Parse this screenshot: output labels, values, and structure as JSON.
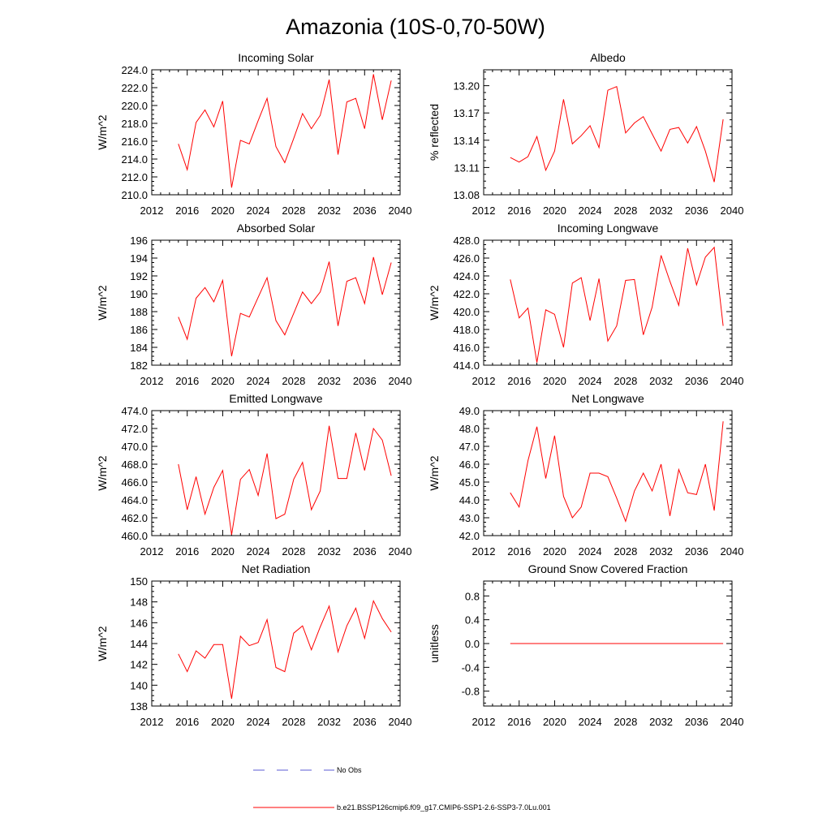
{
  "title": "Amazonia (10S-0,70-50W)",
  "legend": {
    "obs_label": "No Obs",
    "model_label": "b.e21.BSSP126cmip6.f09_g17.CMIP6-SSP1-2.6-SSP3-7.0Lu.001",
    "obs_color": "#5b5bd6",
    "model_color": "#ff0000"
  },
  "chart_data": [
    {
      "type": "line",
      "title": "Incoming Solar",
      "ylabel": "W/m^2",
      "xlim": [
        2012,
        2040
      ],
      "xticks": [
        "2012",
        "2016",
        "2020",
        "2024",
        "2028",
        "2032",
        "2036",
        "2040"
      ],
      "ylim": [
        210,
        224
      ],
      "yticks": [
        "210.0",
        "212.0",
        "214.0",
        "216.0",
        "218.0",
        "220.0",
        "222.0",
        "224.0"
      ],
      "x": [
        2015,
        2016,
        2017,
        2018,
        2019,
        2020,
        2021,
        2022,
        2023,
        2024,
        2025,
        2026,
        2027,
        2028,
        2029,
        2030,
        2031,
        2032,
        2033,
        2034,
        2035,
        2036,
        2037,
        2038,
        2039
      ],
      "series": [
        {
          "color": "#ff0000",
          "values": [
            215.7,
            212.8,
            218.1,
            219.5,
            217.6,
            220.5,
            210.8,
            216.1,
            215.7,
            218.3,
            220.8,
            215.4,
            213.6,
            216.3,
            219.1,
            217.4,
            218.9,
            222.9,
            214.5,
            220.4,
            220.8,
            217.4,
            223.5,
            218.4,
            222.8
          ]
        }
      ]
    },
    {
      "type": "line",
      "title": "Albedo",
      "ylabel": "% reflected",
      "xlim": [
        2012,
        2040
      ],
      "xticks": [
        "2012",
        "2016",
        "2020",
        "2024",
        "2028",
        "2032",
        "2036",
        "2040"
      ],
      "ylim": [
        13.08,
        13.2175
      ],
      "yticks": [
        "13.08",
        "13.11",
        "13.14",
        "13.17",
        "13.20"
      ],
      "x": [
        2015,
        2016,
        2017,
        2018,
        2019,
        2020,
        2021,
        2022,
        2023,
        2024,
        2025,
        2026,
        2027,
        2028,
        2029,
        2030,
        2031,
        2032,
        2033,
        2034,
        2035,
        2036,
        2037,
        2038,
        2039
      ],
      "series": [
        {
          "color": "#ff0000",
          "values": [
            13.121,
            13.116,
            13.122,
            13.144,
            13.107,
            13.128,
            13.185,
            13.136,
            13.145,
            13.156,
            13.132,
            13.195,
            13.199,
            13.148,
            13.159,
            13.166,
            13.147,
            13.128,
            13.152,
            13.154,
            13.137,
            13.155,
            13.128,
            13.094,
            13.163
          ]
        }
      ]
    },
    {
      "type": "line",
      "title": "Absorbed Solar",
      "ylabel": "W/m^2",
      "xlim": [
        2012,
        2040
      ],
      "xticks": [
        "2012",
        "2016",
        "2020",
        "2024",
        "2028",
        "2032",
        "2036",
        "2040"
      ],
      "ylim": [
        182,
        196
      ],
      "yticks": [
        "182",
        "184",
        "186",
        "188",
        "190",
        "192",
        "194",
        "196"
      ],
      "x": [
        2015,
        2016,
        2017,
        2018,
        2019,
        2020,
        2021,
        2022,
        2023,
        2024,
        2025,
        2026,
        2027,
        2028,
        2029,
        2030,
        2031,
        2032,
        2033,
        2034,
        2035,
        2036,
        2037,
        2038,
        2039
      ],
      "series": [
        {
          "color": "#ff0000",
          "values": [
            187.4,
            184.9,
            189.5,
            190.7,
            189.1,
            191.5,
            183.0,
            187.8,
            187.4,
            189.6,
            191.8,
            187.0,
            185.4,
            187.8,
            190.2,
            188.9,
            190.2,
            193.6,
            186.4,
            191.4,
            191.8,
            188.9,
            194.1,
            189.9,
            193.5
          ]
        }
      ]
    },
    {
      "type": "line",
      "title": "Incoming Longwave",
      "ylabel": "W/m^2",
      "xlim": [
        2012,
        2040
      ],
      "xticks": [
        "2012",
        "2016",
        "2020",
        "2024",
        "2028",
        "2032",
        "2036",
        "2040"
      ],
      "ylim": [
        414,
        428
      ],
      "yticks": [
        "414.0",
        "416.0",
        "418.0",
        "420.0",
        "422.0",
        "424.0",
        "426.0",
        "428.0"
      ],
      "x": [
        2015,
        2016,
        2017,
        2018,
        2019,
        2020,
        2021,
        2022,
        2023,
        2024,
        2025,
        2026,
        2027,
        2028,
        2029,
        2030,
        2031,
        2032,
        2033,
        2034,
        2035,
        2036,
        2037,
        2038,
        2039
      ],
      "series": [
        {
          "color": "#ff0000",
          "values": [
            423.6,
            419.3,
            420.4,
            414.3,
            420.2,
            419.7,
            416.0,
            423.2,
            423.8,
            419.0,
            423.7,
            416.7,
            418.4,
            423.5,
            423.6,
            417.4,
            420.5,
            426.3,
            423.4,
            420.7,
            427.1,
            423.0,
            426.1,
            427.2,
            418.4
          ]
        }
      ]
    },
    {
      "type": "line",
      "title": "Emitted Longwave",
      "ylabel": "W/m^2",
      "xlim": [
        2012,
        2040
      ],
      "xticks": [
        "2012",
        "2016",
        "2020",
        "2024",
        "2028",
        "2032",
        "2036",
        "2040"
      ],
      "ylim": [
        460,
        474
      ],
      "yticks": [
        "460.0",
        "462.0",
        "464.0",
        "466.0",
        "468.0",
        "470.0",
        "472.0",
        "474.0"
      ],
      "x": [
        2015,
        2016,
        2017,
        2018,
        2019,
        2020,
        2021,
        2022,
        2023,
        2024,
        2025,
        2026,
        2027,
        2028,
        2029,
        2030,
        2031,
        2032,
        2033,
        2034,
        2035,
        2036,
        2037,
        2038,
        2039
      ],
      "series": [
        {
          "color": "#ff0000",
          "values": [
            468.0,
            462.9,
            466.6,
            462.4,
            465.4,
            467.3,
            460.1,
            466.3,
            467.4,
            464.5,
            469.2,
            461.9,
            462.4,
            466.3,
            468.2,
            462.9,
            465.0,
            472.3,
            466.4,
            466.4,
            471.5,
            467.3,
            472.0,
            470.7,
            466.7
          ]
        }
      ]
    },
    {
      "type": "line",
      "title": "Net Longwave",
      "ylabel": "W/m^2",
      "xlim": [
        2012,
        2040
      ],
      "xticks": [
        "2012",
        "2016",
        "2020",
        "2024",
        "2028",
        "2032",
        "2036",
        "2040"
      ],
      "ylim": [
        42,
        49
      ],
      "yticks": [
        "42.0",
        "43.0",
        "44.0",
        "45.0",
        "46.0",
        "47.0",
        "48.0",
        "49.0"
      ],
      "x": [
        2015,
        2016,
        2017,
        2018,
        2019,
        2020,
        2021,
        2022,
        2023,
        2024,
        2025,
        2026,
        2027,
        2028,
        2029,
        2030,
        2031,
        2032,
        2033,
        2034,
        2035,
        2036,
        2037,
        2038,
        2039
      ],
      "series": [
        {
          "color": "#ff0000",
          "values": [
            44.4,
            43.6,
            46.2,
            48.1,
            45.2,
            47.6,
            44.2,
            43.0,
            43.6,
            45.5,
            45.5,
            45.3,
            44.1,
            42.8,
            44.5,
            45.5,
            44.5,
            46.0,
            43.1,
            45.7,
            44.4,
            44.3,
            46.0,
            43.4,
            48.4
          ]
        }
      ]
    },
    {
      "type": "line",
      "title": "Net Radiation",
      "ylabel": "W/m^2",
      "xlim": [
        2012,
        2040
      ],
      "xticks": [
        "2012",
        "2016",
        "2020",
        "2024",
        "2028",
        "2032",
        "2036",
        "2040"
      ],
      "ylim": [
        138,
        150
      ],
      "yticks": [
        "138",
        "140",
        "142",
        "144",
        "146",
        "148",
        "150"
      ],
      "x": [
        2015,
        2016,
        2017,
        2018,
        2019,
        2020,
        2021,
        2022,
        2023,
        2024,
        2025,
        2026,
        2027,
        2028,
        2029,
        2030,
        2031,
        2032,
        2033,
        2034,
        2035,
        2036,
        2037,
        2038,
        2039
      ],
      "series": [
        {
          "color": "#ff0000",
          "values": [
            143.0,
            141.3,
            143.3,
            142.6,
            143.9,
            143.9,
            138.7,
            144.7,
            143.8,
            144.1,
            146.3,
            141.7,
            141.3,
            145.0,
            145.7,
            143.4,
            145.6,
            147.6,
            143.2,
            145.7,
            147.4,
            144.5,
            148.1,
            146.4,
            145.1
          ]
        }
      ]
    },
    {
      "type": "line",
      "title": "Ground Snow Covered Fraction",
      "ylabel": "unitless",
      "xlim": [
        2012,
        2040
      ],
      "xticks": [
        "2012",
        "2016",
        "2020",
        "2024",
        "2028",
        "2032",
        "2036",
        "2040"
      ],
      "ylim": [
        -1.05,
        1.05
      ],
      "yticks": [
        "-0.8",
        "-0.4",
        "0.0",
        "0.4",
        "0.8"
      ],
      "x": [
        2015,
        2039
      ],
      "series": [
        {
          "color": "#ff0000",
          "values": [
            0.0,
            0.0
          ]
        }
      ]
    }
  ]
}
